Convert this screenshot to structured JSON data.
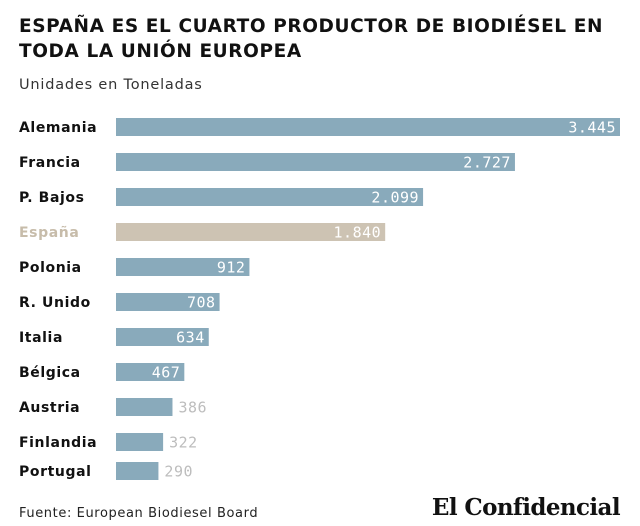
{
  "chart_data": {
    "type": "bar",
    "orientation": "horizontal",
    "title": "ESPAÑA ES EL CUARTO PRODUCTOR DE BIODIÉSEL EN TODA LA UNIÓN EUROPEA",
    "subtitle": "Unidades en Toneladas",
    "categories": [
      "Alemania",
      "Francia",
      "P. Bajos",
      "España",
      "Polonia",
      "R. Unido",
      "Italia",
      "Bélgica",
      "Austria",
      "Finlandia",
      "Portugal"
    ],
    "values": [
      3445,
      2727,
      2099,
      1840,
      912,
      708,
      634,
      467,
      386,
      322,
      290
    ],
    "value_labels": [
      "3.445",
      "2.727",
      "2.099",
      "1.840",
      "912",
      "708",
      "634",
      "467",
      "386",
      "322",
      "290"
    ],
    "highlight_category": "España",
    "xlim": [
      0,
      3445
    ],
    "grid": false,
    "legend": "none"
  },
  "colors": {
    "bar": "#89aabb",
    "highlight_bar": "#cdc3b3",
    "highlight_label": "#c7bcaa",
    "category_label": "#111111",
    "value_inside": "#ffffff",
    "value_outside": "#bdbdbd"
  },
  "footer": {
    "source": "Fuente: European Biodiesel Board",
    "brand": "El Confidencial"
  }
}
